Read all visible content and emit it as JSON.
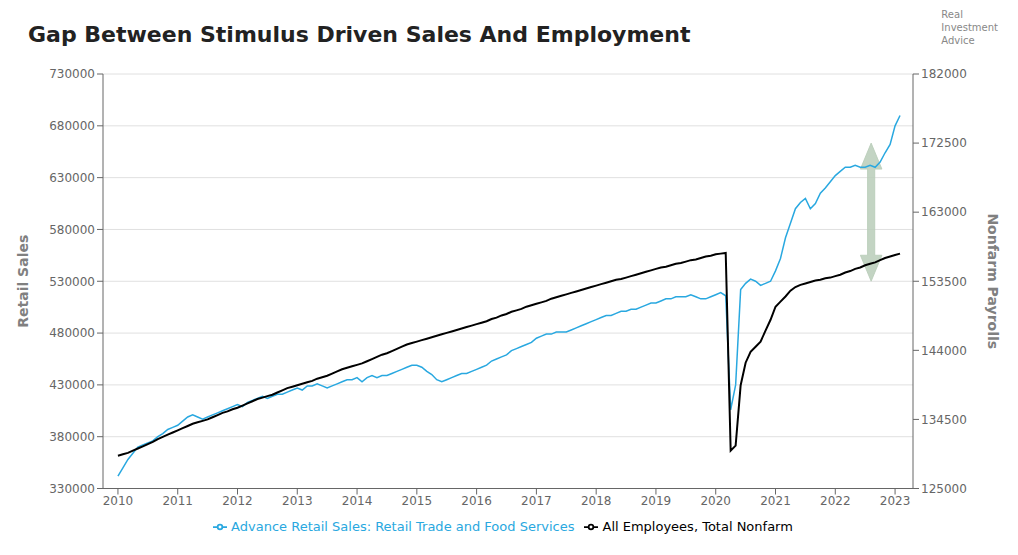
{
  "chart_data": {
    "type": "line",
    "title": "Gap Between Stimulus Driven Sales And Employment",
    "x": [
      2010.0,
      2010.083,
      2010.167,
      2010.25,
      2010.333,
      2010.417,
      2010.5,
      2010.583,
      2010.667,
      2010.75,
      2010.833,
      2010.917,
      2011.0,
      2011.083,
      2011.167,
      2011.25,
      2011.333,
      2011.417,
      2011.5,
      2011.583,
      2011.667,
      2011.75,
      2011.833,
      2011.917,
      2012.0,
      2012.083,
      2012.167,
      2012.25,
      2012.333,
      2012.417,
      2012.5,
      2012.583,
      2012.667,
      2012.75,
      2012.833,
      2012.917,
      2013.0,
      2013.083,
      2013.167,
      2013.25,
      2013.333,
      2013.417,
      2013.5,
      2013.583,
      2013.667,
      2013.75,
      2013.833,
      2013.917,
      2014.0,
      2014.083,
      2014.167,
      2014.25,
      2014.333,
      2014.417,
      2014.5,
      2014.583,
      2014.667,
      2014.75,
      2014.833,
      2014.917,
      2015.0,
      2015.083,
      2015.167,
      2015.25,
      2015.333,
      2015.417,
      2015.5,
      2015.583,
      2015.667,
      2015.75,
      2015.833,
      2015.917,
      2016.0,
      2016.083,
      2016.167,
      2016.25,
      2016.333,
      2016.417,
      2016.5,
      2016.583,
      2016.667,
      2016.75,
      2016.833,
      2016.917,
      2017.0,
      2017.083,
      2017.167,
      2017.25,
      2017.333,
      2017.417,
      2017.5,
      2017.583,
      2017.667,
      2017.75,
      2017.833,
      2017.917,
      2018.0,
      2018.083,
      2018.167,
      2018.25,
      2018.333,
      2018.417,
      2018.5,
      2018.583,
      2018.667,
      2018.75,
      2018.833,
      2018.917,
      2019.0,
      2019.083,
      2019.167,
      2019.25,
      2019.333,
      2019.417,
      2019.5,
      2019.583,
      2019.667,
      2019.75,
      2019.833,
      2019.917,
      2020.0,
      2020.083,
      2020.167,
      2020.25,
      2020.333,
      2020.417,
      2020.5,
      2020.583,
      2020.667,
      2020.75,
      2020.833,
      2020.917,
      2021.0,
      2021.083,
      2021.167,
      2021.25,
      2021.333,
      2021.417,
      2021.5,
      2021.583,
      2021.667,
      2021.75,
      2021.833,
      2021.917,
      2022.0,
      2022.083,
      2022.167,
      2022.25,
      2022.333,
      2022.417,
      2022.5,
      2022.583,
      2022.667,
      2022.75,
      2022.833,
      2022.917,
      2023.0,
      2023.083
    ],
    "series": [
      {
        "name": "Advance Retail Sales: Retail Trade and Food Services",
        "color": "#29a8e0",
        "values": [
          342000,
          350000,
          358000,
          364000,
          370000,
          372000,
          374000,
          376000,
          380000,
          383000,
          387000,
          389000,
          391000,
          395000,
          399000,
          401000,
          399000,
          397000,
          399000,
          401000,
          403000,
          405000,
          407000,
          409000,
          411000,
          409000,
          413000,
          415000,
          417000,
          419000,
          417000,
          419000,
          421000,
          421000,
          423000,
          425000,
          427000,
          425000,
          429000,
          429000,
          431000,
          429000,
          427000,
          429000,
          431000,
          433000,
          435000,
          435000,
          437000,
          433000,
          437000,
          439000,
          437000,
          439000,
          439000,
          441000,
          443000,
          445000,
          447000,
          449000,
          449000,
          447000,
          443000,
          440000,
          435000,
          433000,
          435000,
          437000,
          439000,
          441000,
          441000,
          443000,
          445000,
          447000,
          449000,
          453000,
          455000,
          457000,
          459000,
          463000,
          465000,
          467000,
          469000,
          471000,
          475000,
          477000,
          479000,
          479000,
          481000,
          481000,
          481000,
          483000,
          485000,
          487000,
          489000,
          491000,
          493000,
          495000,
          497000,
          497000,
          499000,
          501000,
          501000,
          503000,
          503000,
          505000,
          507000,
          509000,
          509000,
          511000,
          513000,
          513000,
          515000,
          515000,
          515000,
          517000,
          515000,
          513000,
          513000,
          515000,
          517000,
          519000,
          516000,
          406000,
          430000,
          522000,
          528000,
          532000,
          530000,
          526000,
          528000,
          530000,
          540000,
          552000,
          572000,
          586000,
          600000,
          606000,
          610000,
          600000,
          605000,
          615000,
          620000,
          626000,
          632000,
          636000,
          640000,
          640000,
          642000,
          640000,
          640000,
          642000,
          640000,
          645000,
          654000,
          662000,
          680000,
          690000
        ]
      },
      {
        "name": "All Employees, Total Nonfarm",
        "color": "#000000",
        "axis": "y2",
        "values": [
          129500,
          129700,
          129900,
          130200,
          130500,
          130800,
          131100,
          131400,
          131800,
          132100,
          132400,
          132700,
          133000,
          133300,
          133600,
          133900,
          134100,
          134300,
          134500,
          134800,
          135100,
          135400,
          135600,
          135900,
          136100,
          136400,
          136700,
          137000,
          137300,
          137500,
          137700,
          137900,
          138200,
          138500,
          138800,
          139000,
          139200,
          139400,
          139600,
          139800,
          140100,
          140300,
          140500,
          140800,
          141100,
          141400,
          141600,
          141800,
          142000,
          142200,
          142500,
          142800,
          143100,
          143400,
          143600,
          143900,
          144200,
          144500,
          144800,
          145000,
          145200,
          145400,
          145600,
          145800,
          146000,
          146200,
          146400,
          146600,
          146800,
          147000,
          147200,
          147400,
          147600,
          147800,
          148000,
          148300,
          148500,
          148800,
          149000,
          149300,
          149500,
          149700,
          150000,
          150200,
          150400,
          150600,
          150800,
          151100,
          151300,
          151500,
          151700,
          151900,
          152100,
          152300,
          152500,
          152700,
          152900,
          153100,
          153300,
          153500,
          153700,
          153800,
          154000,
          154200,
          154400,
          154600,
          154800,
          155000,
          155200,
          155400,
          155500,
          155700,
          155900,
          156000,
          156200,
          156400,
          156500,
          156700,
          156900,
          157000,
          157200,
          157300,
          157400,
          130200,
          130900,
          139200,
          142300,
          143800,
          144500,
          145200,
          146700,
          148200,
          150000,
          150700,
          151400,
          152200,
          152700,
          153000,
          153200,
          153400,
          153600,
          153700,
          153900,
          154000,
          154200,
          154400,
          154700,
          154900,
          155200,
          155400,
          155700,
          155900,
          156100,
          156400,
          156700,
          156900,
          157100,
          157300
        ]
      }
    ],
    "xlim": [
      2009.75,
      2023.3
    ],
    "xticks": [
      2010,
      2011,
      2012,
      2013,
      2014,
      2015,
      2016,
      2017,
      2018,
      2019,
      2020,
      2021,
      2022,
      2023
    ],
    "ylim": [
      330000,
      730000
    ],
    "yticks": [
      330000,
      380000,
      430000,
      480000,
      530000,
      580000,
      630000,
      680000,
      730000
    ],
    "y2lim": [
      125000,
      182000
    ],
    "y2ticks": [
      125000,
      134500,
      144000,
      153500,
      163000,
      172500,
      182000
    ],
    "ylabel": "Retail Sales",
    "y2label": "Nonfarm Payrolls",
    "grid": true,
    "legend": "bottom",
    "annotations": [
      {
        "text": "Real\nInvestment\nAdvice"
      }
    ],
    "arrow": {
      "x": 2022.6,
      "y_top": 172500,
      "y_bottom": 153500,
      "color": "#b8ccb8",
      "axis": "y2"
    }
  }
}
